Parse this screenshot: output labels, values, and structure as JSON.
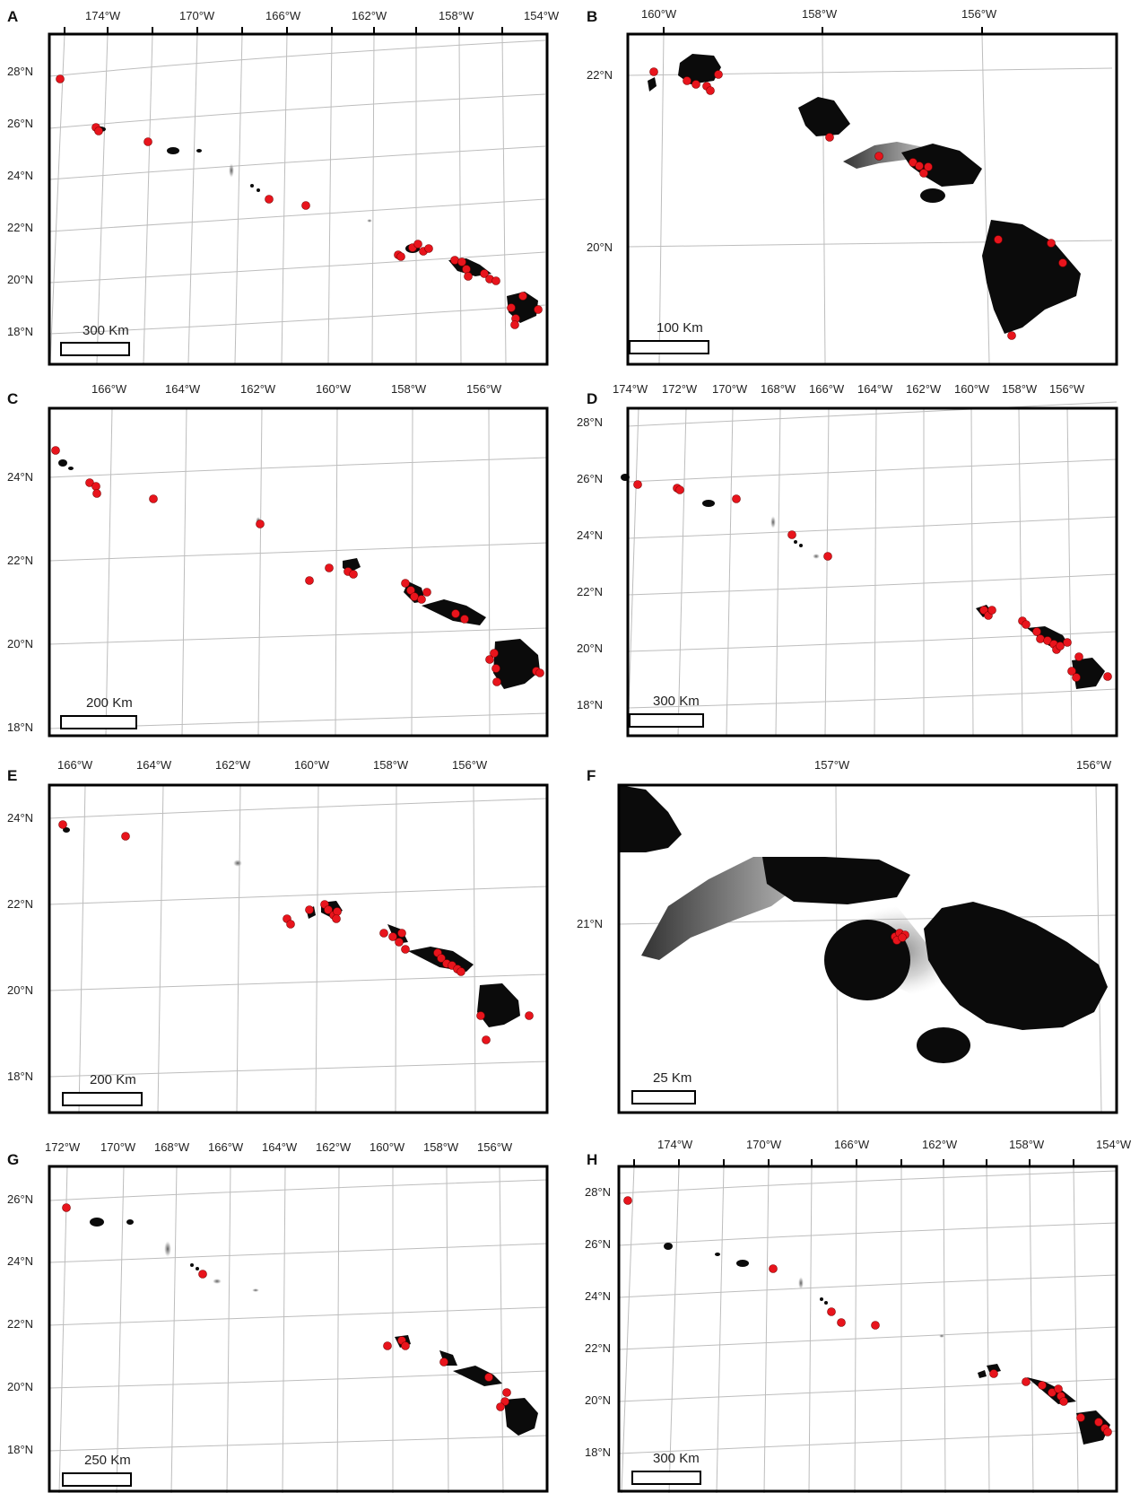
{
  "panels": [
    {
      "letter": "A",
      "scale": "300 Km",
      "lon_labels": [
        "174°W",
        "170°W",
        "166°W",
        "162°W",
        "158°W",
        "154°W"
      ],
      "lat_labels": [
        "28°N",
        "26°N",
        "24°N",
        "22°N",
        "20°N",
        "18°N"
      ]
    },
    {
      "letter": "B",
      "scale": "100 Km",
      "lon_labels": [
        "160°W",
        "158°W",
        "156°W"
      ],
      "lat_labels": [
        "22°N",
        "20°N"
      ]
    },
    {
      "letter": "C",
      "scale": "200 Km",
      "lon_labels": [
        "166°W",
        "164°W",
        "162°W",
        "160°W",
        "158°W",
        "156°W"
      ],
      "lat_labels": [
        "24°N",
        "22°N",
        "20°N",
        "18°N"
      ]
    },
    {
      "letter": "D",
      "scale": "300 Km",
      "lon_labels": [
        "174°W",
        "172°W",
        "170°W",
        "168°W",
        "166°W",
        "164°W",
        "162°W",
        "160°W",
        "158°W",
        "156°W"
      ],
      "lat_labels": [
        "28°N",
        "26°N",
        "24°N",
        "22°N",
        "20°N",
        "18°N"
      ]
    },
    {
      "letter": "E",
      "scale": "200 Km",
      "lon_labels": [
        "166°W",
        "164°W",
        "162°W",
        "160°W",
        "158°W",
        "156°W"
      ],
      "lat_labels": [
        "24°N",
        "22°N",
        "20°N",
        "18°N"
      ]
    },
    {
      "letter": "F",
      "scale": "25 Km",
      "lon_labels": [
        "157°W",
        "156°W"
      ],
      "lat_labels": [
        "21°N"
      ]
    },
    {
      "letter": "G",
      "scale": "250 Km",
      "lon_labels": [
        "172°W",
        "170°W",
        "168°W",
        "166°W",
        "164°W",
        "162°W",
        "160°W",
        "158°W",
        "156°W"
      ],
      "lat_labels": [
        "26°N",
        "24°N",
        "22°N",
        "20°N",
        "18°N"
      ]
    },
    {
      "letter": "H",
      "scale": "300 Km",
      "lon_labels": [
        "174°W",
        "170°W",
        "166°W",
        "162°W",
        "158°W",
        "154°W"
      ],
      "lat_labels": [
        "28°N",
        "26°N",
        "24°N",
        "22°N",
        "20°N",
        "18°N"
      ]
    }
  ],
  "colors": {
    "land": "#0b0b0b",
    "occurrence": "#e8141c",
    "grid": "#bdbdbd",
    "frame": "#000000"
  }
}
